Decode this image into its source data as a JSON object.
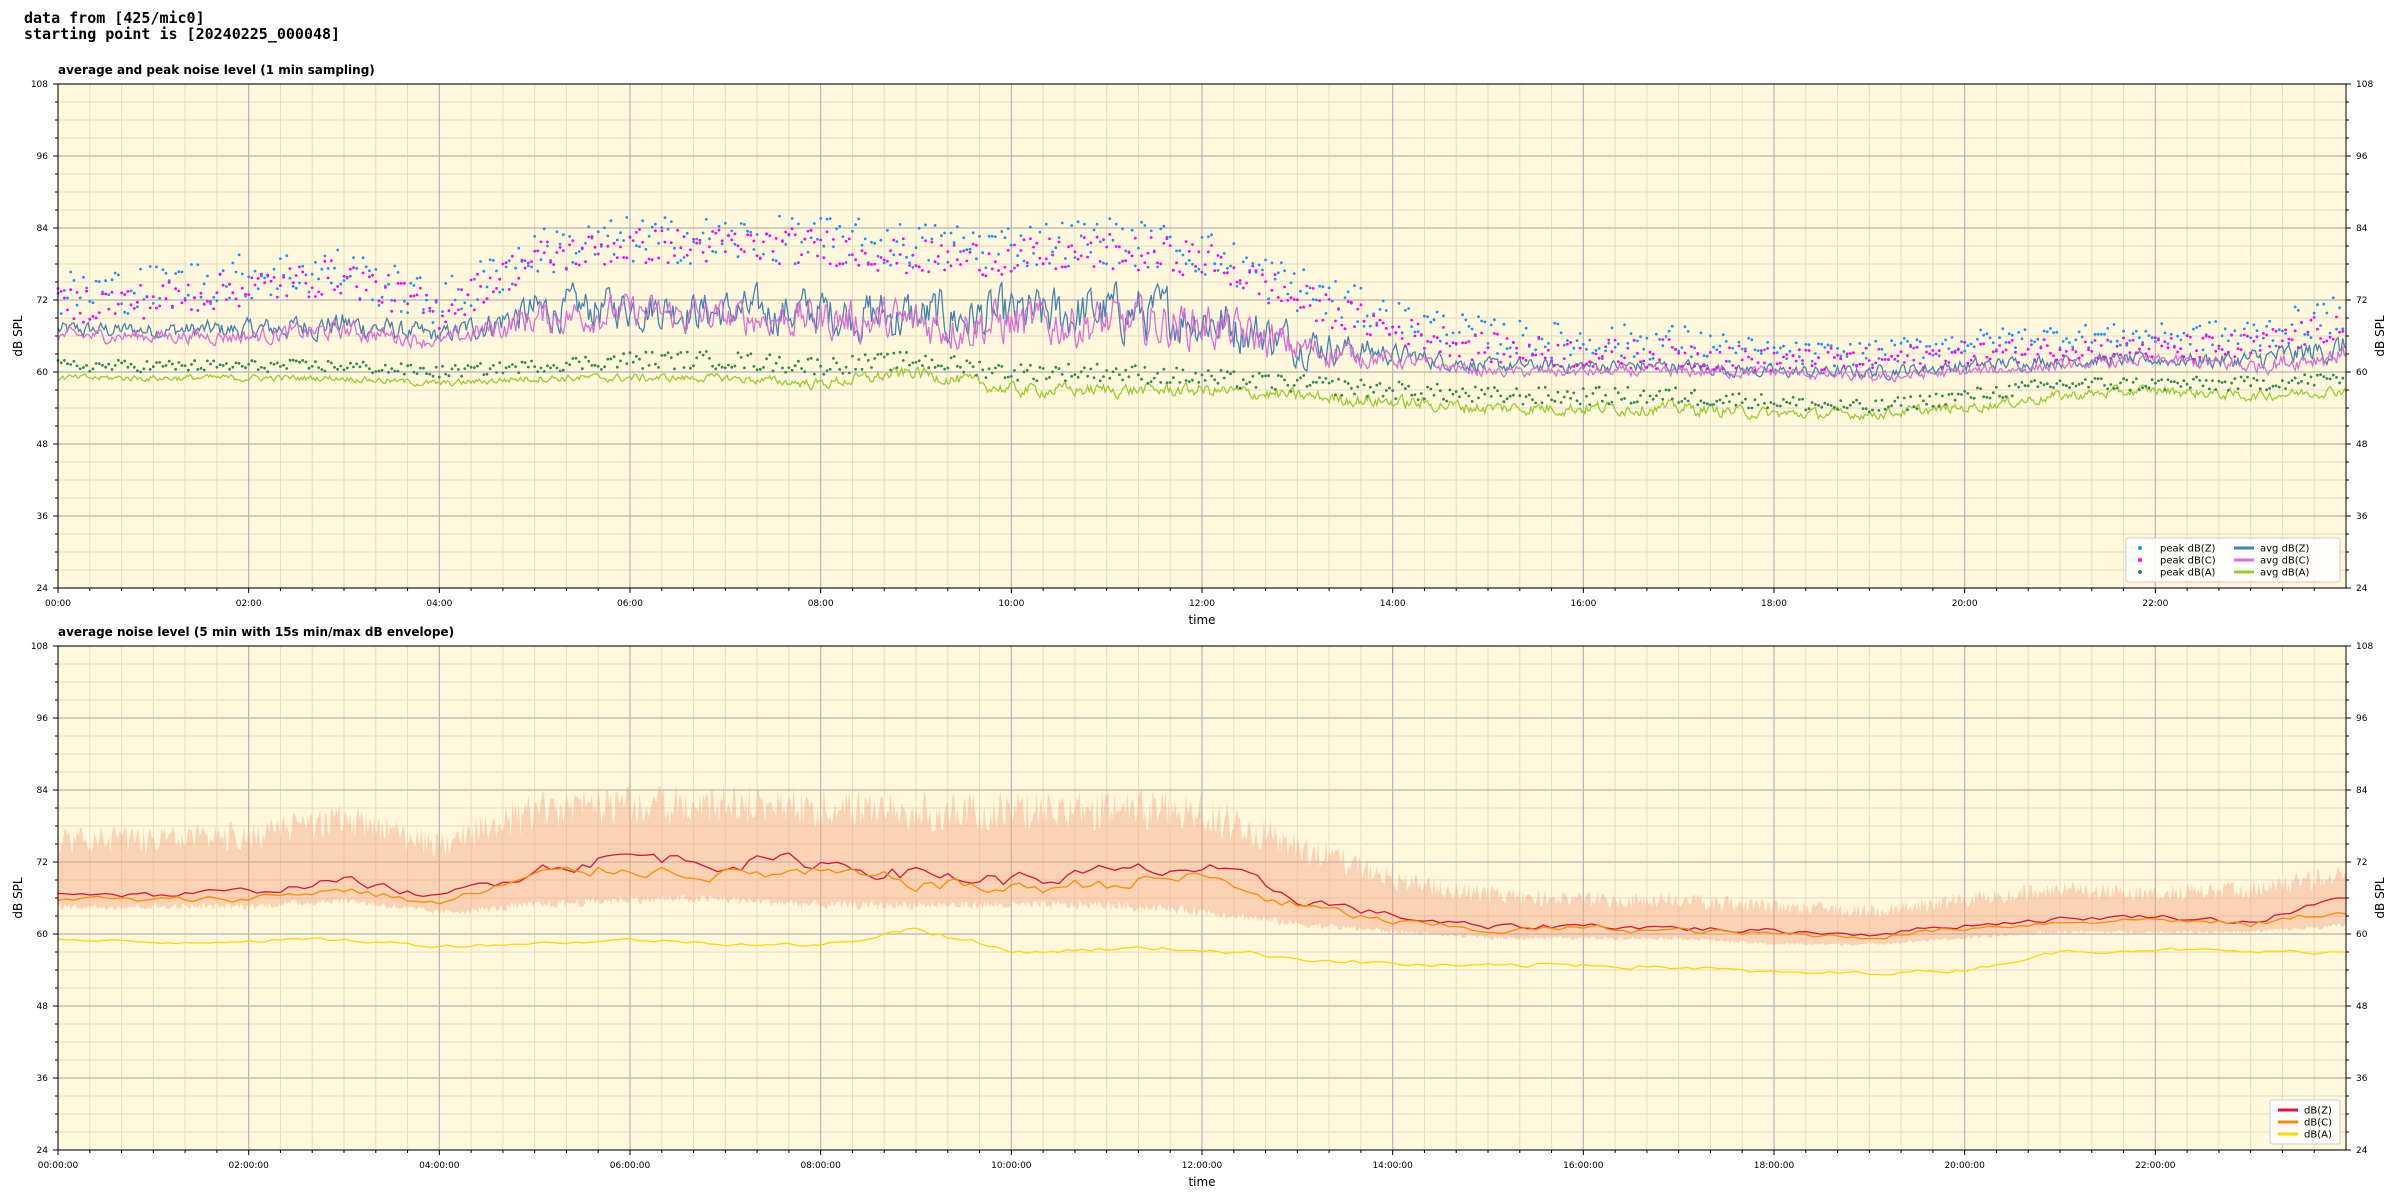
{
  "header": {
    "line1": "data from [425/mic0]",
    "line2": "starting point is [20240225_000048]"
  },
  "colors": {
    "plot_bg": "#fff8dc",
    "grid_major": "#b4b4b4",
    "grid_minor": "#e6dcc0",
    "peak_z": "#1e90ff",
    "peak_c": "#ff00ff",
    "peak_a": "#2e8b57",
    "avg_z": "#4682b4",
    "avg_c": "#da70d6",
    "avg_a": "#9acd32",
    "env": "#f4a582",
    "dbz": "#dc143c",
    "dbc": "#ff8c00",
    "dba": "#ffd700"
  },
  "chart_data": [
    {
      "type": "line",
      "title": "average and peak noise level (1 min sampling)",
      "xlabel": "time",
      "ylabel": "dB SPL",
      "ylabel_right": "dB SPL",
      "xlim_hours": [
        0,
        24
      ],
      "ylim": [
        24,
        108
      ],
      "yticks": [
        24,
        36,
        48,
        60,
        72,
        84,
        96,
        108
      ],
      "xtick_labels": [
        "00:00",
        "02:00",
        "04:00",
        "06:00",
        "08:00",
        "10:00",
        "12:00",
        "14:00",
        "16:00",
        "18:00",
        "20:00",
        "22:00"
      ],
      "grid": true,
      "legend_position": "lower right",
      "legend": [
        {
          "label": "peak dB(Z)",
          "kind": "dot",
          "color": "#1e90ff"
        },
        {
          "label": "peak dB(C)",
          "kind": "dot",
          "color": "#ff00ff"
        },
        {
          "label": "peak dB(A)",
          "kind": "dot",
          "color": "#2e8b57"
        },
        {
          "label": "avg dB(Z)",
          "kind": "line",
          "color": "#4682b4"
        },
        {
          "label": "avg dB(C)",
          "kind": "line",
          "color": "#da70d6"
        },
        {
          "label": "avg dB(A)",
          "kind": "line",
          "color": "#9acd32"
        }
      ],
      "x_hours": [
        0,
        1,
        2,
        3,
        4,
        5,
        6,
        7,
        8,
        9,
        10,
        11,
        12,
        13,
        14,
        15,
        16,
        17,
        18,
        19,
        20,
        21,
        22,
        23,
        24
      ],
      "series": [
        {
          "name": "avg dB(Z)",
          "style": "line",
          "color": "#4682b4",
          "values": [
            67,
            67,
            67,
            68,
            66,
            70,
            71,
            70,
            70,
            69,
            69,
            70,
            69,
            65,
            63,
            61,
            61,
            61,
            60,
            60,
            61,
            62,
            62,
            62,
            64
          ],
          "jitter": [
            1.2,
            1.2,
            1.5,
            2,
            1.2,
            3,
            3,
            3,
            3.5,
            4,
            4,
            4,
            4,
            3,
            1.5,
            1,
            1,
            1,
            1,
            1,
            1,
            1,
            1,
            1.5,
            2
          ]
        },
        {
          "name": "avg dB(C)",
          "style": "line",
          "color": "#da70d6",
          "values": [
            66,
            66,
            66,
            67,
            65,
            69,
            70,
            69,
            69,
            68,
            68,
            68,
            68,
            64,
            62,
            60,
            60,
            60,
            60,
            59,
            60,
            61,
            62,
            61,
            63
          ],
          "jitter": [
            1,
            1,
            1.2,
            1.5,
            1,
            2.5,
            2.5,
            2.5,
            3,
            3.5,
            3.5,
            3.5,
            3.5,
            2.5,
            1.2,
            0.8,
            0.8,
            0.8,
            0.8,
            0.8,
            0.8,
            0.8,
            0.8,
            1.2,
            1.5
          ]
        },
        {
          "name": "avg dB(A)",
          "style": "line",
          "color": "#9acd32",
          "values": [
            59,
            59,
            59,
            59,
            58,
            59,
            59,
            59,
            58,
            60,
            57,
            57,
            57,
            56,
            55,
            54,
            54,
            54,
            53,
            53,
            54,
            56,
            57,
            56,
            57
          ],
          "jitter": [
            0.5,
            0.5,
            0.5,
            0.5,
            0.5,
            0.6,
            0.6,
            0.6,
            0.8,
            1,
            1,
            1,
            1,
            1,
            1,
            1,
            1,
            1,
            0.8,
            0.8,
            0.8,
            0.8,
            0.8,
            0.8,
            0.8
          ]
        },
        {
          "name": "peak dB(Z)",
          "style": "dots",
          "color": "#1e90ff",
          "values": [
            73,
            74,
            76,
            77,
            71,
            80,
            82,
            82,
            82,
            81,
            81,
            82,
            80,
            74,
            69,
            66,
            65,
            65,
            63,
            63,
            65,
            66,
            66,
            66,
            70
          ],
          "jitter": [
            4,
            4,
            4,
            4,
            4,
            4,
            4,
            4,
            4,
            4,
            4,
            4,
            4,
            4,
            3,
            3,
            3,
            3,
            2,
            2,
            2,
            2,
            2,
            3,
            3
          ]
        },
        {
          "name": "peak dB(C)",
          "style": "dots",
          "color": "#ff00ff",
          "values": [
            71,
            72,
            74,
            76,
            70,
            79,
            81,
            81,
            81,
            79,
            79,
            80,
            79,
            72,
            67,
            64,
            63,
            63,
            62,
            62,
            63,
            64,
            64,
            64,
            68
          ],
          "jitter": [
            3,
            3,
            3,
            3,
            3,
            3,
            3,
            3,
            3,
            3,
            3,
            3,
            3,
            3,
            2.5,
            2.5,
            2.5,
            2.5,
            2,
            2,
            2,
            2,
            2,
            2.5,
            2.5
          ]
        },
        {
          "name": "peak dB(A)",
          "style": "dots",
          "color": "#2e8b57",
          "values": [
            61,
            61,
            61,
            61,
            60,
            61,
            62,
            62,
            61,
            62,
            60,
            60,
            59,
            58,
            57,
            56,
            56,
            56,
            55,
            54,
            56,
            58,
            58,
            58,
            59
          ],
          "jitter": [
            1,
            1,
            1,
            1,
            1,
            1,
            1.5,
            1.5,
            1.5,
            1.5,
            1.5,
            1.5,
            1.5,
            1.5,
            1.5,
            1.5,
            1.5,
            1.5,
            1.2,
            1.2,
            1.2,
            1.2,
            1.2,
            1.2,
            1.2
          ]
        }
      ]
    },
    {
      "type": "line",
      "title": "average noise level (5 min with 15s min/max dB envelope)",
      "xlabel": "time",
      "ylabel": "dB SPL",
      "ylabel_right": "dB SPL",
      "xlim_hours": [
        0,
        24
      ],
      "ylim": [
        24,
        108
      ],
      "yticks": [
        24,
        36,
        48,
        60,
        72,
        84,
        96,
        108
      ],
      "xtick_labels": [
        "00:00:00",
        "02:00:00",
        "04:00:00",
        "06:00:00",
        "08:00:00",
        "10:00:00",
        "12:00:00",
        "14:00:00",
        "16:00:00",
        "18:00:00",
        "20:00:00",
        "22:00:00"
      ],
      "grid": true,
      "legend_position": "lower right",
      "legend": [
        {
          "label": "dB(Z)",
          "kind": "line",
          "color": "#dc143c"
        },
        {
          "label": "dB(C)",
          "kind": "line",
          "color": "#ff8c00"
        },
        {
          "label": "dB(A)",
          "kind": "line",
          "color": "#ffd700"
        }
      ],
      "x_hours": [
        0,
        1,
        2,
        3,
        4,
        5,
        6,
        7,
        8,
        9,
        10,
        11,
        12,
        13,
        14,
        15,
        16,
        17,
        18,
        19,
        20,
        21,
        22,
        23,
        24
      ],
      "envelope": {
        "color": "#f4a582",
        "upper": [
          78,
          78,
          79,
          82,
          77,
          84,
          85,
          85,
          85,
          84,
          84,
          84,
          84,
          78,
          71,
          68,
          67,
          67,
          66,
          65,
          67,
          69,
          68,
          69,
          72
        ],
        "lower": [
          64,
          64,
          64,
          65,
          63,
          64,
          65,
          65,
          64,
          64,
          64,
          64,
          63,
          61,
          60,
          59,
          59,
          59,
          58,
          58,
          59,
          60,
          60,
          60,
          61
        ]
      },
      "series": [
        {
          "name": "dB(Z)",
          "style": "line",
          "color": "#dc143c",
          "values": [
            67,
            66.5,
            67,
            69,
            66,
            71,
            73,
            72,
            72,
            70,
            69,
            70,
            71,
            66,
            63,
            61,
            61.5,
            61,
            60.5,
            60,
            61.5,
            62.5,
            63,
            62,
            66
          ],
          "jitter": [
            0.5,
            0.5,
            0.6,
            0.7,
            0.6,
            1.2,
            1.2,
            1.2,
            1.2,
            1.3,
            1.3,
            1.3,
            1.3,
            1,
            0.6,
            0.5,
            0.5,
            0.5,
            0.4,
            0.4,
            0.4,
            0.4,
            0.4,
            0.5,
            0.6
          ]
        },
        {
          "name": "dB(C)",
          "style": "line",
          "color": "#ff8c00",
          "values": [
            66,
            65.5,
            66,
            67.5,
            65,
            69.5,
            71,
            70,
            70,
            68.5,
            67.5,
            68.5,
            69.5,
            64.5,
            62,
            60.5,
            61,
            60.5,
            60,
            59.5,
            61,
            62,
            62.5,
            61.5,
            64
          ],
          "jitter": [
            0.5,
            0.5,
            0.6,
            0.7,
            0.6,
            1.1,
            1.1,
            1.1,
            1.1,
            1.2,
            1.2,
            1.2,
            1.2,
            1,
            0.6,
            0.5,
            0.5,
            0.5,
            0.4,
            0.4,
            0.4,
            0.4,
            0.4,
            0.5,
            0.6
          ]
        },
        {
          "name": "dB(A)",
          "style": "line",
          "color": "#ffd700",
          "values": [
            59,
            58.5,
            59,
            59,
            58,
            58.5,
            59,
            58.5,
            58,
            61,
            57,
            57.5,
            57.5,
            56,
            55,
            54.5,
            55,
            54.5,
            53.5,
            53.5,
            54,
            57,
            57.5,
            57,
            57
          ],
          "jitter": [
            0.3,
            0.3,
            0.3,
            0.3,
            0.3,
            0.3,
            0.3,
            0.3,
            0.3,
            0.5,
            0.4,
            0.4,
            0.4,
            0.4,
            0.4,
            0.4,
            0.5,
            0.4,
            0.3,
            0.3,
            0.3,
            0.3,
            0.3,
            0.3,
            0.3
          ]
        }
      ]
    }
  ]
}
